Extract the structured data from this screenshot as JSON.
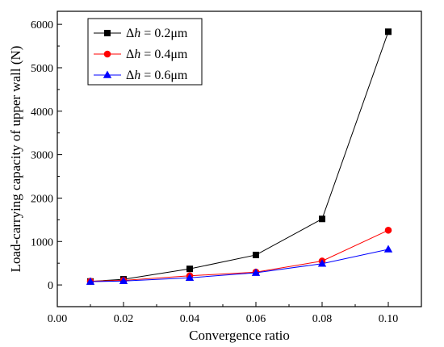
{
  "chart_data": {
    "type": "line",
    "xlabel": "Convergence ratio",
    "ylabel": "Load-carrying capacity of upper wall (N)",
    "xlim": [
      0.0,
      0.11
    ],
    "ylim": [
      -500,
      6300
    ],
    "x_ticks": [
      "0.00",
      "0.02",
      "0.04",
      "0.06",
      "0.08",
      "0.10"
    ],
    "y_ticks": [
      "0",
      "1000",
      "2000",
      "3000",
      "4000",
      "5000",
      "6000"
    ],
    "x": [
      0.01,
      0.02,
      0.04,
      0.06,
      0.08,
      0.1
    ],
    "series": [
      {
        "legend_prefix": "Δ",
        "legend_var": "h",
        "legend_value": " = 0.2μm",
        "color": "#000000",
        "marker": "square",
        "values": [
          80,
          130,
          370,
          690,
          1520,
          5830
        ]
      },
      {
        "legend_prefix": "Δ",
        "legend_var": "h",
        "legend_value": " = 0.4μm",
        "color": "#ff0000",
        "marker": "circle",
        "values": [
          85,
          105,
          210,
          295,
          550,
          1260
        ]
      },
      {
        "legend_prefix": "Δ",
        "legend_var": "h",
        "legend_value": " = 0.6μm",
        "color": "#0000ff",
        "marker": "triangle",
        "values": [
          75,
          90,
          165,
          280,
          490,
          820
        ]
      }
    ],
    "grid": false,
    "legend_position": "top-left"
  }
}
